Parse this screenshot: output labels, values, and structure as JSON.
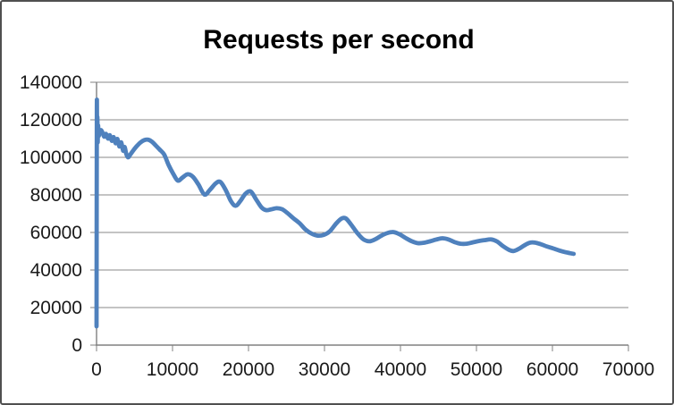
{
  "chart_data": {
    "type": "line",
    "title": "Requests per second",
    "xlabel": "",
    "ylabel": "",
    "xlim": [
      0,
      70000
    ],
    "ylim": [
      0,
      140000
    ],
    "x_tick_step": 10000,
    "y_tick_step": 20000,
    "x_tick_labels": [
      "0",
      "10000",
      "20000",
      "30000",
      "40000",
      "50000",
      "60000",
      "70000"
    ],
    "y_tick_labels": [
      "0",
      "20000",
      "40000",
      "60000",
      "80000",
      "100000",
      "120000",
      "140000"
    ],
    "grid": "horizontal",
    "legend": "none",
    "series": [
      {
        "name": "Requests per second",
        "color": "#4F81BD",
        "points": [
          [
            0,
            10000
          ],
          [
            40,
            126000
          ],
          [
            70,
            109500
          ],
          [
            110,
            121500
          ],
          [
            150,
            108000
          ],
          [
            200,
            117000
          ],
          [
            280,
            111500
          ],
          [
            400,
            113500
          ],
          [
            600,
            114500
          ],
          [
            800,
            113000
          ],
          [
            1000,
            111000
          ],
          [
            1250,
            112500
          ],
          [
            1500,
            110000
          ],
          [
            1750,
            111800
          ],
          [
            2000,
            108800
          ],
          [
            2250,
            110800
          ],
          [
            2500,
            107500
          ],
          [
            2750,
            109800
          ],
          [
            3000,
            105800
          ],
          [
            3250,
            108000
          ],
          [
            3500,
            103500
          ],
          [
            3700,
            105500
          ],
          [
            3900,
            102000
          ],
          [
            4150,
            100000
          ],
          [
            4450,
            101500
          ],
          [
            4800,
            103500
          ],
          [
            5300,
            106000
          ],
          [
            5800,
            108000
          ],
          [
            6300,
            109200
          ],
          [
            6800,
            109400
          ],
          [
            7300,
            108300
          ],
          [
            7800,
            106300
          ],
          [
            8300,
            104200
          ],
          [
            8900,
            101500
          ],
          [
            9500,
            95800
          ],
          [
            10100,
            91200
          ],
          [
            10700,
            87600
          ],
          [
            11300,
            89200
          ],
          [
            12000,
            91000
          ],
          [
            12700,
            89600
          ],
          [
            13400,
            85600
          ],
          [
            14200,
            80200
          ],
          [
            14900,
            82600
          ],
          [
            15700,
            86200
          ],
          [
            16300,
            86900
          ],
          [
            17000,
            82600
          ],
          [
            17700,
            76600
          ],
          [
            18300,
            74200
          ],
          [
            18900,
            76600
          ],
          [
            19600,
            80600
          ],
          [
            20300,
            81800
          ],
          [
            21000,
            77600
          ],
          [
            21700,
            73400
          ],
          [
            22300,
            71900
          ],
          [
            23000,
            72300
          ],
          [
            23700,
            72900
          ],
          [
            24400,
            72400
          ],
          [
            25100,
            70400
          ],
          [
            25900,
            67600
          ],
          [
            26700,
            65000
          ],
          [
            27500,
            61600
          ],
          [
            28300,
            59400
          ],
          [
            29100,
            58300
          ],
          [
            29900,
            58700
          ],
          [
            30700,
            60600
          ],
          [
            31500,
            64600
          ],
          [
            32200,
            67300
          ],
          [
            32800,
            67500
          ],
          [
            33500,
            64200
          ],
          [
            34300,
            59800
          ],
          [
            35100,
            56400
          ],
          [
            35900,
            55300
          ],
          [
            36700,
            56400
          ],
          [
            37500,
            58300
          ],
          [
            38300,
            59700
          ],
          [
            39100,
            60200
          ],
          [
            39900,
            59000
          ],
          [
            40700,
            57000
          ],
          [
            41500,
            55300
          ],
          [
            42300,
            54300
          ],
          [
            43100,
            54500
          ],
          [
            43900,
            55300
          ],
          [
            44700,
            56200
          ],
          [
            45500,
            56900
          ],
          [
            46300,
            56300
          ],
          [
            47100,
            54900
          ],
          [
            47900,
            54000
          ],
          [
            48700,
            54000
          ],
          [
            49500,
            54700
          ],
          [
            50300,
            55400
          ],
          [
            51100,
            55900
          ],
          [
            51900,
            56300
          ],
          [
            52700,
            55200
          ],
          [
            53500,
            52700
          ],
          [
            54300,
            50700
          ],
          [
            54900,
            50100
          ],
          [
            55600,
            51300
          ],
          [
            56300,
            53100
          ],
          [
            57000,
            54500
          ],
          [
            57700,
            54600
          ],
          [
            58500,
            53700
          ],
          [
            59300,
            52500
          ],
          [
            60100,
            51500
          ],
          [
            60900,
            50400
          ],
          [
            61700,
            49500
          ],
          [
            62400,
            48900
          ],
          [
            62800,
            48600
          ]
        ]
      }
    ]
  },
  "colors": {
    "series_line": "#4F81BD",
    "gridline": "#8a8a8a",
    "axis": "#808080",
    "tick_text": "#1a1a1a",
    "title_text": "#000000",
    "background": "#ffffff",
    "frame_border": "#4f4f4f"
  }
}
